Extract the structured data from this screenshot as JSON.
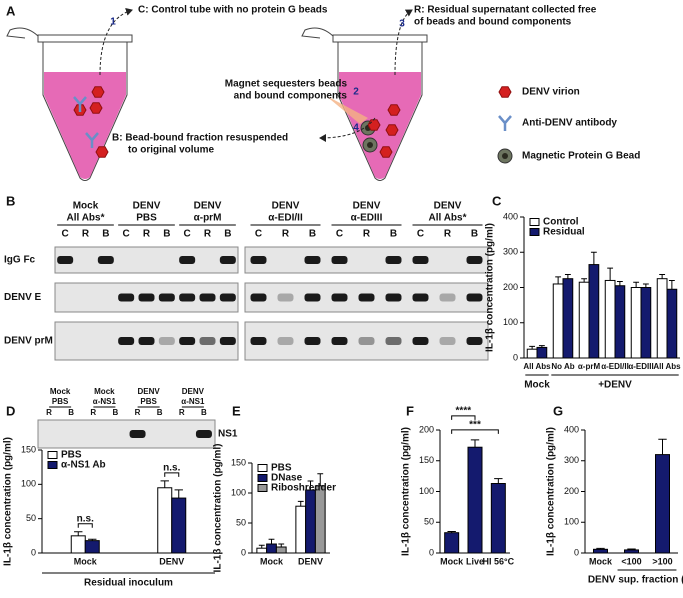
{
  "panels": [
    "A",
    "B",
    "C",
    "D",
    "E",
    "F",
    "G"
  ],
  "diagram": {
    "steps": [
      {
        "number": "1",
        "text": [
          "C: Control tube with no protein G beads"
        ]
      },
      {
        "number": "2",
        "text": [
          "Magnet sequesters beads",
          "and bound components"
        ]
      },
      {
        "number": "3",
        "text": [
          "R: Residual supernatant collected free",
          "of beads and bound components"
        ]
      },
      {
        "number": "4",
        "text": [
          "B: Bead-bound fraction resuspended",
          "to original volume"
        ]
      }
    ],
    "legend": [
      "DENV virion",
      "Anti-DENV antibody",
      "Magnetic Protein G Bead"
    ]
  },
  "blot_b": {
    "groups": [
      [
        "Mock",
        "All Abs*"
      ],
      [
        "DENV",
        "PBS"
      ],
      [
        "DENV",
        "α-prM"
      ],
      [
        "DENV",
        "α-EDI/II"
      ],
      [
        "DENV",
        "α-EDIII"
      ],
      [
        "DENV",
        "All Abs*"
      ]
    ],
    "lanes": [
      "C",
      "R",
      "B"
    ],
    "rows": [
      "IgG Fc",
      "DENV E",
      "DENV prM"
    ]
  },
  "blot_d": {
    "groups": [
      [
        "Mock",
        "PBS"
      ],
      [
        "Mock",
        "α-NS1"
      ],
      [
        "DENV",
        "PBS"
      ],
      [
        "DENV",
        "α-NS1"
      ]
    ],
    "lanes": [
      "R",
      "B"
    ],
    "label": "NS1"
  },
  "chart_data": [
    {
      "type": "bar",
      "ylabel": "IL-1β concentration (pg/ml)",
      "categories": [
        "All Abs",
        "No Ab",
        "α-prM",
        "α-EDI/II",
        "α-EDIII",
        "All Abs"
      ],
      "group_labels": [
        "Mock",
        "+DENV"
      ],
      "series": [
        {
          "name": "Control",
          "color": "#ffffff",
          "values": [
            25,
            210,
            215,
            220,
            200,
            225
          ],
          "errors": [
            8,
            20,
            10,
            35,
            15,
            12
          ]
        },
        {
          "name": "Residual",
          "color": "#141a6e",
          "values": [
            30,
            225,
            265,
            205,
            200,
            195
          ],
          "errors": [
            5,
            12,
            35,
            12,
            10,
            25
          ]
        }
      ],
      "ylim": [
        0,
        400
      ],
      "yticks": [
        0,
        100,
        200,
        300,
        400
      ],
      "legend": "upper left"
    },
    {
      "type": "bar",
      "ylabel": "IL-1β concentration (pg/ml)",
      "xlabel": "Residual inoculum",
      "categories": [
        "Mock",
        "DENV"
      ],
      "series": [
        {
          "name": "PBS",
          "color": "#ffffff",
          "values": [
            25,
            95
          ],
          "errors": [
            6,
            10
          ]
        },
        {
          "name": "α-NS1 Ab",
          "color": "#141a6e",
          "values": [
            18,
            80
          ],
          "errors": [
            2,
            12
          ]
        }
      ],
      "ylim": [
        0,
        150
      ],
      "yticks": [
        0,
        50,
        100,
        150
      ],
      "legend": "upper left",
      "annotations": [
        "n.s.",
        "n.s."
      ]
    },
    {
      "type": "bar",
      "ylabel": "IL-1β concentration (pg/ml)",
      "categories": [
        "Mock",
        "DENV"
      ],
      "series": [
        {
          "name": "PBS",
          "color": "#ffffff",
          "values": [
            8,
            78
          ],
          "errors": [
            5,
            8
          ]
        },
        {
          "name": "DNase",
          "color": "#141a6e",
          "values": [
            15,
            105
          ],
          "errors": [
            8,
            15
          ]
        },
        {
          "name": "Riboshredder",
          "color": "#999999",
          "values": [
            10,
            112
          ],
          "errors": [
            5,
            20
          ]
        }
      ],
      "ylim": [
        0,
        150
      ],
      "yticks": [
        0,
        50,
        100,
        150
      ],
      "legend": "upper left"
    },
    {
      "type": "bar",
      "ylabel": "IL-1β concentration (pg/ml)",
      "categories": [
        "Mock",
        "Live",
        "HI 56°C"
      ],
      "series": [
        {
          "color": "#141a6e",
          "values": [
            33,
            172,
            113
          ],
          "errors": [
            2,
            12,
            8
          ]
        }
      ],
      "ylim": [
        0,
        200
      ],
      "yticks": [
        0,
        50,
        100,
        150,
        200
      ],
      "annotations": [
        "****",
        "***"
      ]
    },
    {
      "type": "bar",
      "ylabel": "IL-1β concentration (pg/ml)",
      "categories": [
        "Mock",
        "<100",
        ">100"
      ],
      "group_labels": [
        "DENV sup. fraction (kDa)"
      ],
      "series": [
        {
          "color": "#141a6e",
          "values": [
            12,
            10,
            320
          ],
          "errors": [
            3,
            3,
            50
          ]
        }
      ],
      "ylim": [
        0,
        400
      ],
      "yticks": [
        0,
        100,
        200,
        300,
        400
      ]
    }
  ]
}
